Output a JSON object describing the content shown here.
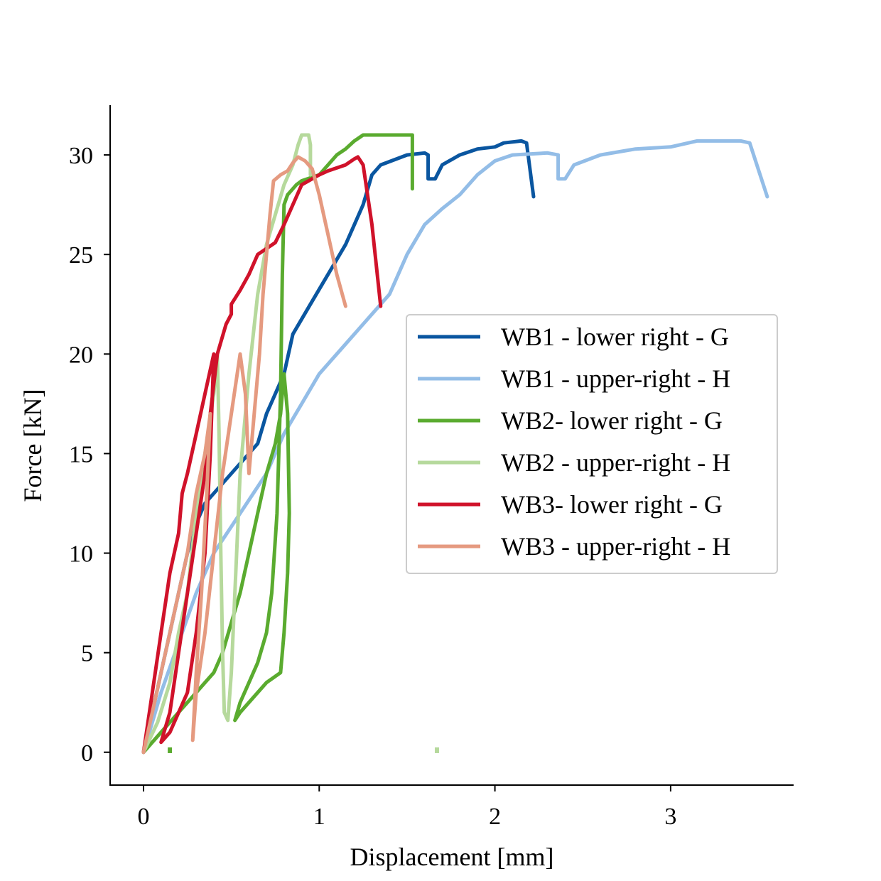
{
  "chart_data": {
    "type": "line",
    "title": "",
    "xlabel": "Displacement [mm]",
    "ylabel": "Force [kN]",
    "xlim": [
      -0.19,
      3.7
    ],
    "ylim": [
      -1.65,
      32.5
    ],
    "xticks": [
      0,
      1,
      2,
      3
    ],
    "yticks": [
      0,
      5,
      10,
      15,
      20,
      25,
      30
    ],
    "grid": false,
    "legend_position": "center-right",
    "series": [
      {
        "name": "WB1 - lower right - G",
        "color": "#0a56a0",
        "points": [
          [
            0,
            0
          ],
          [
            0.05,
            2
          ],
          [
            0.1,
            4
          ],
          [
            0.15,
            6
          ],
          [
            0.2,
            8
          ],
          [
            0.25,
            10
          ],
          [
            0.3,
            11.5
          ],
          [
            0.35,
            12.5
          ],
          [
            0.45,
            13.5
          ],
          [
            0.55,
            14.5
          ],
          [
            0.65,
            15.5
          ],
          [
            0.7,
            17
          ],
          [
            0.75,
            18
          ],
          [
            0.8,
            19
          ],
          [
            0.85,
            21
          ],
          [
            0.95,
            22.5
          ],
          [
            1.05,
            24
          ],
          [
            1.15,
            25.5
          ],
          [
            1.25,
            27.5
          ],
          [
            1.3,
            29
          ],
          [
            1.35,
            29.5
          ],
          [
            1.5,
            30
          ],
          [
            1.6,
            30.1
          ],
          [
            1.62,
            30
          ],
          [
            1.62,
            28.8
          ],
          [
            1.66,
            28.8
          ],
          [
            1.7,
            29.5
          ],
          [
            1.8,
            30
          ],
          [
            1.9,
            30.3
          ],
          [
            2.0,
            30.4
          ],
          [
            2.05,
            30.6
          ],
          [
            2.15,
            30.7
          ],
          [
            2.18,
            30.6
          ],
          [
            2.22,
            27.9
          ]
        ]
      },
      {
        "name": "WB1 - upper-right - H",
        "color": "#93bde7",
        "points": [
          [
            0,
            0
          ],
          [
            0.1,
            3
          ],
          [
            0.2,
            5.5
          ],
          [
            0.3,
            8
          ],
          [
            0.4,
            10
          ],
          [
            0.55,
            12
          ],
          [
            0.7,
            14
          ],
          [
            0.8,
            16
          ],
          [
            0.9,
            17.5
          ],
          [
            1.0,
            19
          ],
          [
            1.1,
            20
          ],
          [
            1.2,
            21
          ],
          [
            1.3,
            22
          ],
          [
            1.4,
            23
          ],
          [
            1.5,
            25
          ],
          [
            1.6,
            26.5
          ],
          [
            1.7,
            27.3
          ],
          [
            1.8,
            28
          ],
          [
            1.9,
            29
          ],
          [
            2.0,
            29.7
          ],
          [
            2.1,
            30
          ],
          [
            2.3,
            30.1
          ],
          [
            2.36,
            30
          ],
          [
            2.36,
            28.8
          ],
          [
            2.4,
            28.8
          ],
          [
            2.45,
            29.5
          ],
          [
            2.6,
            30
          ],
          [
            2.8,
            30.3
          ],
          [
            3.0,
            30.4
          ],
          [
            3.15,
            30.7
          ],
          [
            3.4,
            30.7
          ],
          [
            3.45,
            30.6
          ],
          [
            3.55,
            27.9
          ]
        ]
      },
      {
        "name": "WB2- lower right - G",
        "color": "#5aab2f",
        "points": [
          [
            0,
            0
          ],
          [
            0.1,
            1
          ],
          [
            0.2,
            2
          ],
          [
            0.3,
            3
          ],
          [
            0.4,
            4
          ],
          [
            0.45,
            5
          ],
          [
            0.5,
            6.5
          ],
          [
            0.55,
            8
          ],
          [
            0.6,
            10
          ],
          [
            0.65,
            12
          ],
          [
            0.7,
            14
          ],
          [
            0.75,
            15.5
          ],
          [
            0.78,
            17
          ],
          [
            0.8,
            19
          ],
          [
            0.82,
            17
          ],
          [
            0.83,
            12
          ],
          [
            0.82,
            9
          ],
          [
            0.8,
            6
          ],
          [
            0.78,
            4
          ],
          [
            0.7,
            3.5
          ],
          [
            0.6,
            2.5
          ],
          [
            0.55,
            2
          ],
          [
            0.52,
            1.6
          ],
          [
            0.55,
            2.5
          ],
          [
            0.6,
            3.5
          ],
          [
            0.65,
            4.5
          ],
          [
            0.7,
            6
          ],
          [
            0.73,
            8
          ],
          [
            0.76,
            12
          ],
          [
            0.78,
            18
          ],
          [
            0.79,
            24
          ],
          [
            0.8,
            27.5
          ],
          [
            0.82,
            28
          ],
          [
            0.87,
            28.5
          ],
          [
            0.9,
            28.7
          ],
          [
            1.0,
            29
          ],
          [
            1.05,
            29.5
          ],
          [
            1.1,
            30
          ],
          [
            1.15,
            30.3
          ],
          [
            1.2,
            30.7
          ],
          [
            1.25,
            31.0
          ],
          [
            1.5,
            31.0
          ],
          [
            1.53,
            31.0
          ],
          [
            1.53,
            28.3
          ]
        ]
      },
      {
        "name": "WB2 - upper-right - H",
        "color": "#b6d99c",
        "points": [
          [
            0,
            0
          ],
          [
            0.08,
            1.5
          ],
          [
            0.15,
            3.5
          ],
          [
            0.2,
            6
          ],
          [
            0.25,
            8
          ],
          [
            0.3,
            12
          ],
          [
            0.35,
            15
          ],
          [
            0.4,
            18
          ],
          [
            0.42,
            20
          ],
          [
            0.43,
            16
          ],
          [
            0.44,
            10
          ],
          [
            0.45,
            5
          ],
          [
            0.46,
            2
          ],
          [
            0.48,
            1.6
          ],
          [
            0.5,
            4
          ],
          [
            0.52,
            8
          ],
          [
            0.55,
            14
          ],
          [
            0.6,
            19
          ],
          [
            0.65,
            23
          ],
          [
            0.7,
            25.5
          ],
          [
            0.75,
            27
          ],
          [
            0.8,
            28.5
          ],
          [
            0.85,
            29.5
          ],
          [
            0.88,
            30.5
          ],
          [
            0.9,
            31
          ],
          [
            0.94,
            31
          ],
          [
            0.95,
            30.5
          ],
          [
            0.95,
            29
          ]
        ]
      },
      {
        "name": "WB3- lower right - G",
        "color": "#d0122a",
        "points": [
          [
            0,
            0
          ],
          [
            0.05,
            3
          ],
          [
            0.1,
            6
          ],
          [
            0.15,
            9
          ],
          [
            0.2,
            11
          ],
          [
            0.22,
            13
          ],
          [
            0.25,
            14
          ],
          [
            0.3,
            16
          ],
          [
            0.35,
            18
          ],
          [
            0.4,
            20
          ],
          [
            0.38,
            15
          ],
          [
            0.35,
            10
          ],
          [
            0.3,
            6
          ],
          [
            0.25,
            3
          ],
          [
            0.15,
            1
          ],
          [
            0.1,
            0.5
          ],
          [
            0.15,
            2
          ],
          [
            0.2,
            5
          ],
          [
            0.25,
            8
          ],
          [
            0.3,
            11
          ],
          [
            0.35,
            14
          ],
          [
            0.38,
            17
          ],
          [
            0.42,
            20
          ],
          [
            0.47,
            21.5
          ],
          [
            0.5,
            22
          ],
          [
            0.5,
            22.5
          ],
          [
            0.55,
            23.2
          ],
          [
            0.6,
            24
          ],
          [
            0.65,
            25
          ],
          [
            0.7,
            25.3
          ],
          [
            0.75,
            25.6
          ],
          [
            0.8,
            26.5
          ],
          [
            0.85,
            27.5
          ],
          [
            0.9,
            28.5
          ],
          [
            1.0,
            29
          ],
          [
            1.05,
            29.2
          ],
          [
            1.15,
            29.5
          ],
          [
            1.2,
            29.8
          ],
          [
            1.22,
            29.9
          ],
          [
            1.25,
            29.5
          ],
          [
            1.3,
            26.5
          ],
          [
            1.35,
            22.4
          ]
        ]
      },
      {
        "name": "WB3 - upper-right - H",
        "color": "#e59a80",
        "points": [
          [
            0,
            0
          ],
          [
            0.05,
            2
          ],
          [
            0.1,
            4
          ],
          [
            0.15,
            6
          ],
          [
            0.2,
            8
          ],
          [
            0.25,
            10
          ],
          [
            0.3,
            13
          ],
          [
            0.35,
            15
          ],
          [
            0.38,
            17
          ],
          [
            0.36,
            13
          ],
          [
            0.33,
            8
          ],
          [
            0.3,
            4
          ],
          [
            0.28,
            0.6
          ],
          [
            0.3,
            3
          ],
          [
            0.35,
            6
          ],
          [
            0.4,
            10
          ],
          [
            0.45,
            14
          ],
          [
            0.5,
            17
          ],
          [
            0.55,
            20
          ],
          [
            0.58,
            18
          ],
          [
            0.6,
            14
          ],
          [
            0.63,
            17
          ],
          [
            0.66,
            20
          ],
          [
            0.68,
            23
          ],
          [
            0.7,
            25
          ],
          [
            0.72,
            27
          ],
          [
            0.74,
            28.7
          ],
          [
            0.78,
            29
          ],
          [
            0.82,
            29.2
          ],
          [
            0.85,
            29.6
          ],
          [
            0.88,
            29.9
          ],
          [
            0.92,
            29.7
          ],
          [
            0.96,
            29.3
          ],
          [
            1.0,
            28
          ],
          [
            1.05,
            26
          ],
          [
            1.1,
            24
          ],
          [
            1.15,
            22.4
          ]
        ]
      }
    ],
    "markers": [
      {
        "x": 0.15,
        "y": 0.1,
        "color": "#5aab2f"
      },
      {
        "x": 1.67,
        "y": 0.1,
        "color": "#b6d99c"
      }
    ]
  }
}
